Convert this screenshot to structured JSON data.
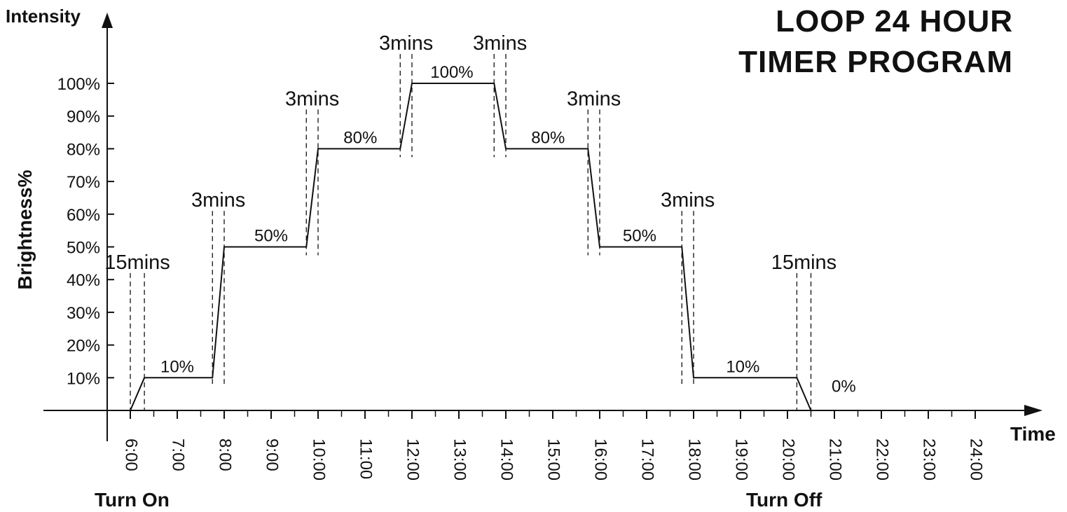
{
  "title": {
    "line1": "LOOP 24 HOUR",
    "line2": "TIMER PROGRAM"
  },
  "labels": {
    "intensity": "Intensity",
    "time": "Time",
    "turn_on": "Turn On",
    "turn_off": "Turn Off"
  },
  "chart_data": {
    "type": "line",
    "title": "LOOP 24 HOUR TIMER PROGRAM",
    "xlabel": "Time",
    "ylabel": "Brightness%",
    "x_ticks": [
      "6:00",
      "7:00",
      "8:00",
      "9:00",
      "10:00",
      "11:00",
      "12:00",
      "13:00",
      "14:00",
      "15:00",
      "16:00",
      "17:00",
      "18:00",
      "19:00",
      "20:00",
      "21:00",
      "22:00",
      "23:00",
      "24:00"
    ],
    "y_ticks": [
      "10%",
      "20%",
      "30%",
      "40%",
      "50%",
      "60%",
      "70%",
      "80%",
      "90%",
      "100%"
    ],
    "xlim": [
      6,
      24
    ],
    "ylim": [
      0,
      100
    ],
    "grid": false,
    "series": [
      {
        "x": [
          6.0,
          6.3,
          7.75,
          8.0,
          9.75,
          10.0,
          11.75,
          12.0,
          13.75,
          14.0,
          15.75,
          16.0,
          17.75,
          18.0,
          20.2,
          20.5
        ],
        "y": [
          0,
          10,
          10,
          50,
          50,
          80,
          80,
          100,
          100,
          80,
          80,
          50,
          50,
          10,
          10,
          0
        ]
      }
    ],
    "level_labels": [
      {
        "text": "10%",
        "x": 7.0,
        "y": 10
      },
      {
        "text": "50%",
        "x": 9.0,
        "y": 50
      },
      {
        "text": "80%",
        "x": 10.9,
        "y": 80
      },
      {
        "text": "100%",
        "x": 12.85,
        "y": 100
      },
      {
        "text": "80%",
        "x": 14.9,
        "y": 80
      },
      {
        "text": "50%",
        "x": 16.85,
        "y": 50
      },
      {
        "text": "10%",
        "x": 19.05,
        "y": 10
      },
      {
        "text": "0%",
        "x": 21.2,
        "y": 4
      }
    ],
    "transitions": [
      {
        "text": "15mins",
        "start": 6.0,
        "end": 6.3,
        "y_top": 42
      },
      {
        "text": "3mins",
        "start": 7.75,
        "end": 8.0,
        "y_top": 61
      },
      {
        "text": "3mins",
        "start": 9.75,
        "end": 10.0,
        "y_top": 92
      },
      {
        "text": "3mins",
        "start": 11.75,
        "end": 12.0,
        "y_top": 109
      },
      {
        "text": "3mins",
        "start": 13.75,
        "end": 14.0,
        "y_top": 109
      },
      {
        "text": "3mins",
        "start": 15.75,
        "end": 16.0,
        "y_top": 92
      },
      {
        "text": "3mins",
        "start": 17.75,
        "end": 18.0,
        "y_top": 61
      },
      {
        "text": "15mins",
        "start": 20.2,
        "end": 20.5,
        "y_top": 42
      }
    ]
  }
}
